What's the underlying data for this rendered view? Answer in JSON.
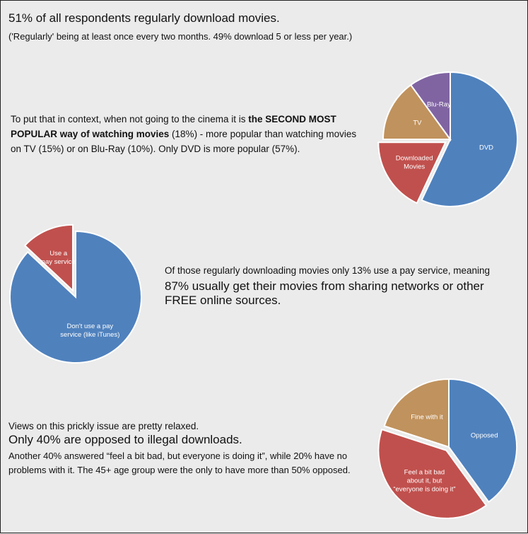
{
  "section1": {
    "headline": "51% of all respondents regularly download movies.",
    "subnote": "('Regularly' being at least once every two months. 49% download 5 or less per year.)"
  },
  "section2": {
    "text_a": "To put that in context, when not going to the cinema it is ",
    "text_bold": "the SECOND MOST POPULAR way of watching movies",
    "text_b": " (18%) - more popular than watching movies on TV (15%) or on Blu-Ray (10%). Only DVD is more popular (57%)."
  },
  "section3": {
    "lead": "Of those regularly downloading movies only 13% use a pay service, meaning",
    "emphasis": "87% usually get their movies from sharing networks or other FREE online sources."
  },
  "section4": {
    "lead": "Views on this prickly issue are pretty relaxed.",
    "emphasis": "Only 40% are opposed to illegal downloads.",
    "detail": "Another 40% answered “feel a bit bad, but everyone is doing it”, while 20% have no problems with it. The 45+ age group were the only to have more than 50% opposed."
  },
  "chart_data": [
    {
      "type": "pie",
      "slices": [
        {
          "label": [
            "DVD"
          ],
          "value": 57,
          "color": "#4f81bd"
        },
        {
          "label": [
            "Downloaded",
            "Movies"
          ],
          "value": 18,
          "color": "#c0504d",
          "exploded": true
        },
        {
          "label": [
            "TV"
          ],
          "value": 15,
          "color": "#c0925d"
        },
        {
          "label": [
            "Blu-Ray"
          ],
          "value": 10,
          "color": "#8064a2"
        }
      ]
    },
    {
      "type": "pie",
      "slices": [
        {
          "label": [
            "Don't use a pay",
            "service (like iTunes)"
          ],
          "value": 87,
          "color": "#4f81bd"
        },
        {
          "label": [
            "Use a",
            "pay service"
          ],
          "value": 13,
          "color": "#c0504d",
          "exploded": true
        }
      ]
    },
    {
      "type": "pie",
      "slices": [
        {
          "label": [
            "Opposed"
          ],
          "value": 40,
          "color": "#4f81bd"
        },
        {
          "label": [
            "Feel a bit bad",
            "about it, but",
            "“everyone is doing it”"
          ],
          "value": 40,
          "color": "#c0504d",
          "exploded": true
        },
        {
          "label": [
            "Fine with it"
          ],
          "value": 20,
          "color": "#c0925d"
        }
      ]
    }
  ]
}
